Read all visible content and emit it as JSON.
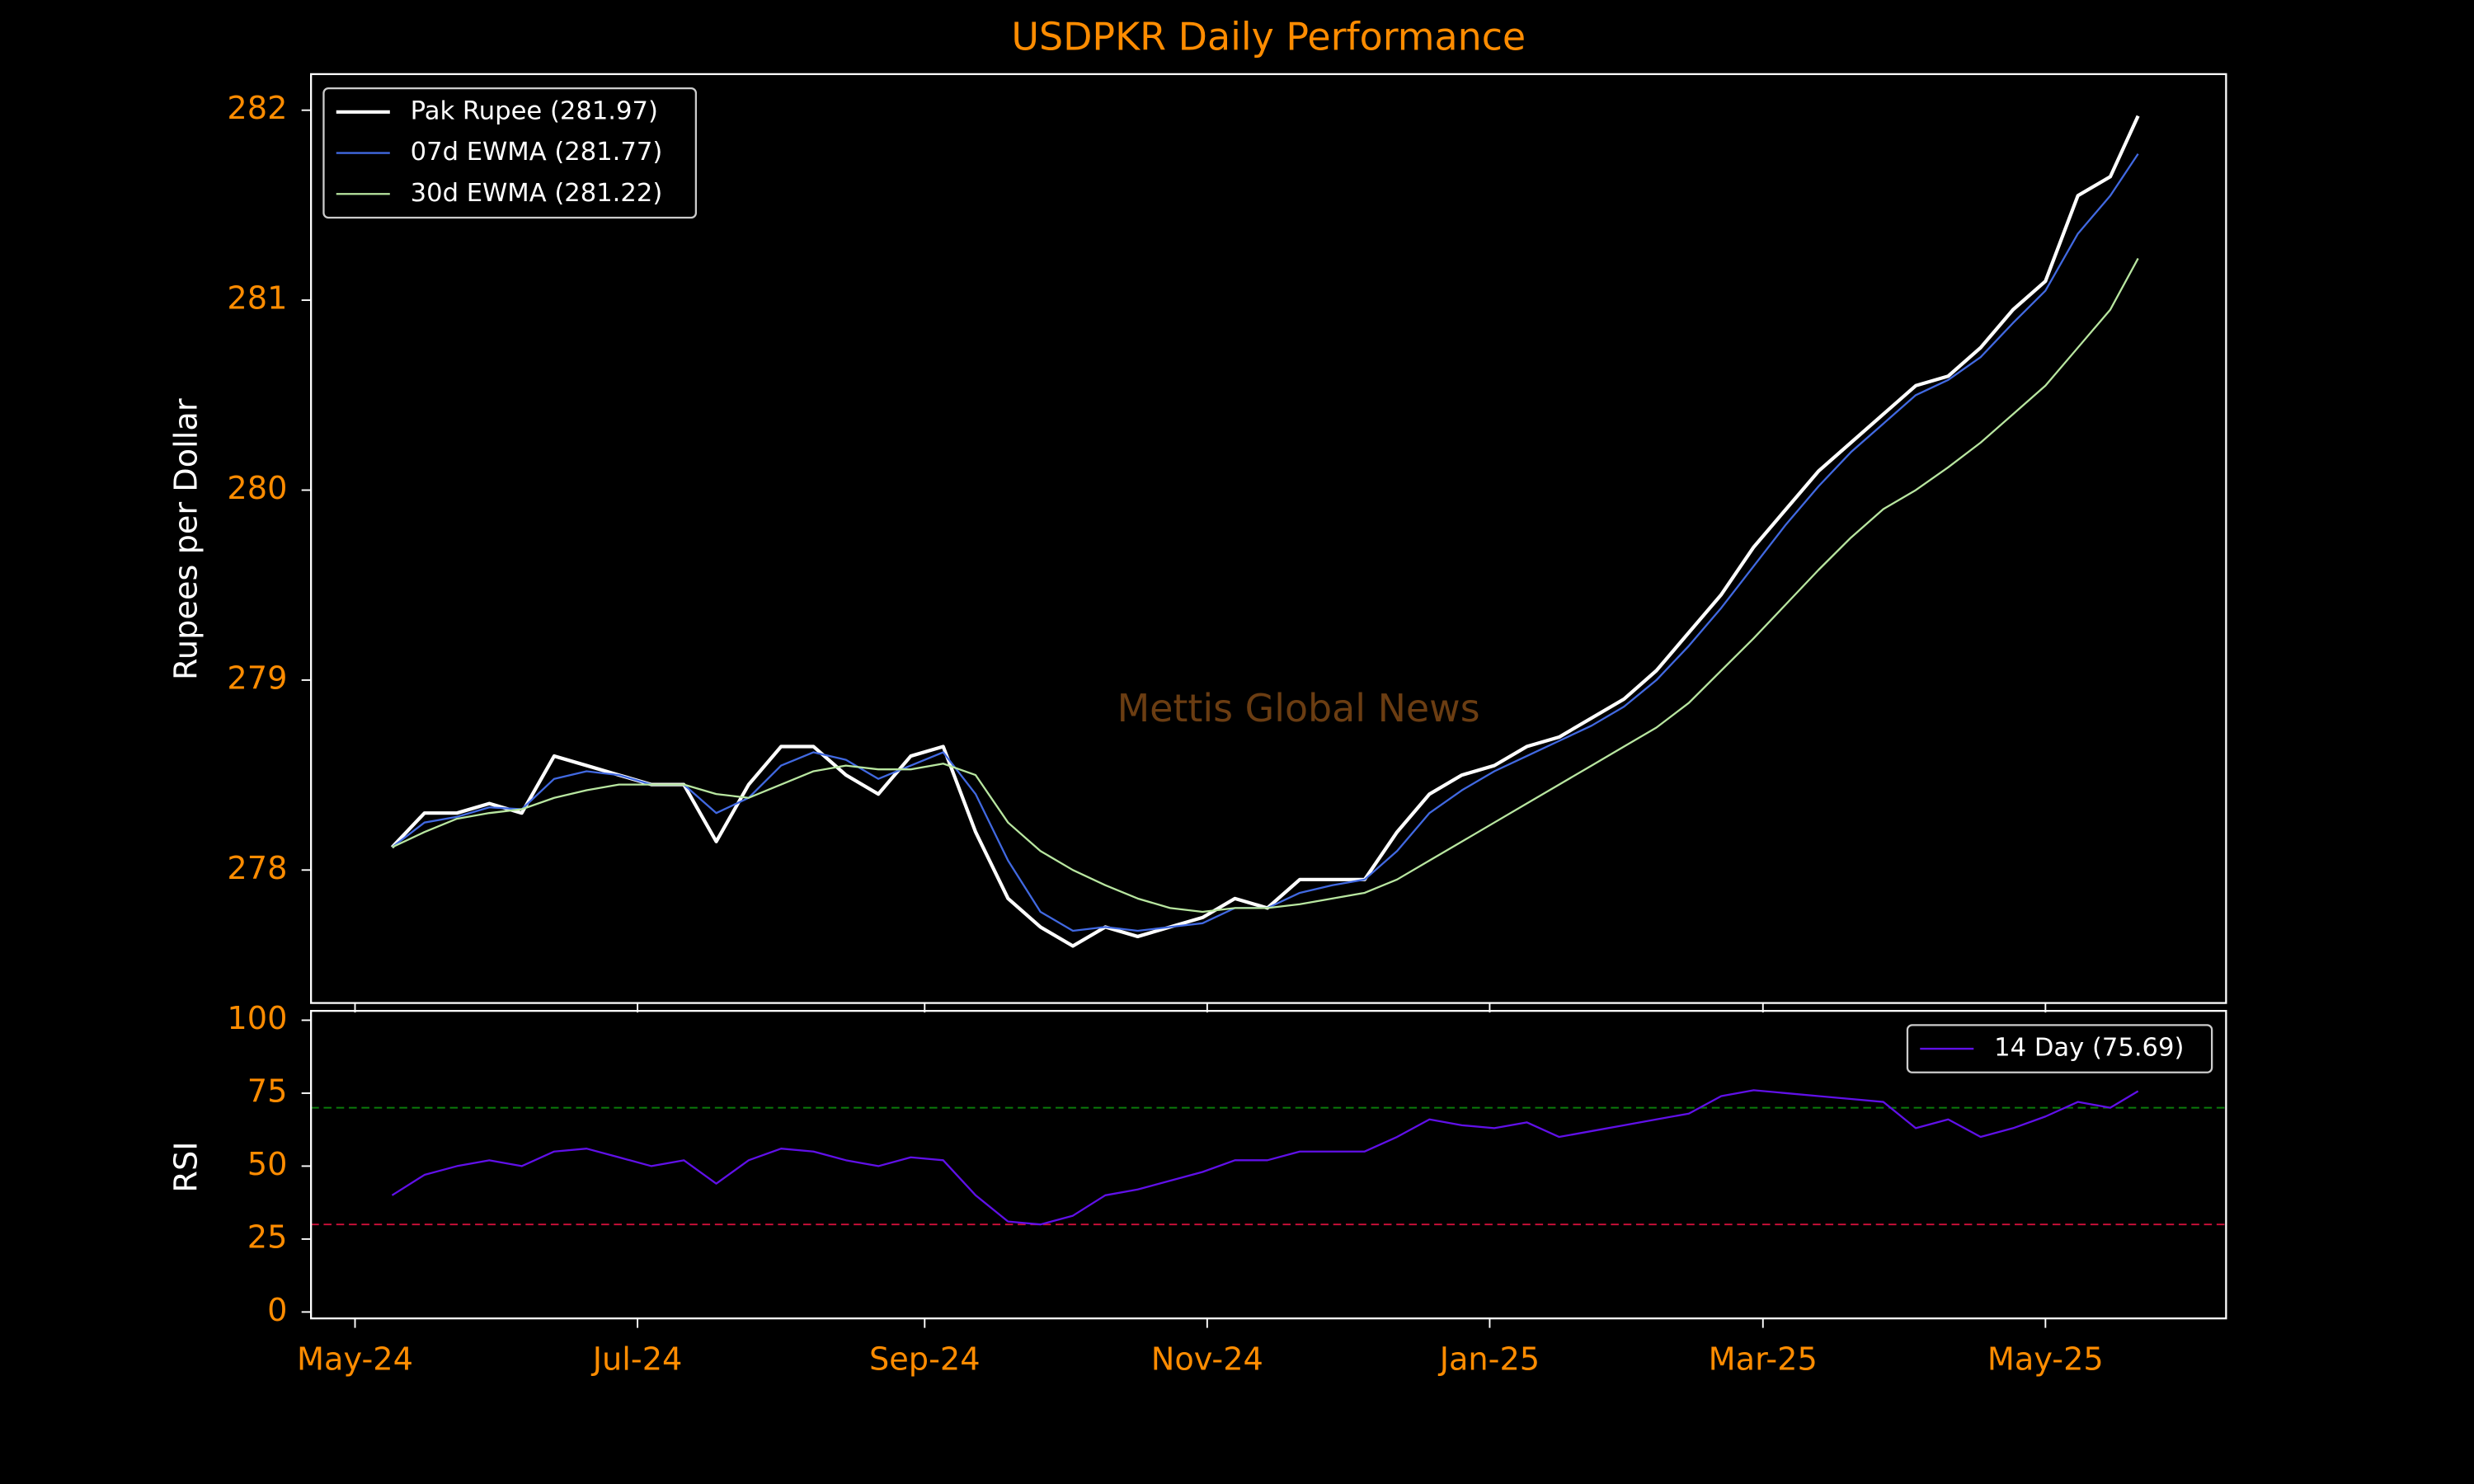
{
  "chart_data": [
    {
      "type": "line",
      "title": "USDPKR Daily Performance",
      "ylabel": "Rupees per Dollar",
      "watermark": "Mettis Global News",
      "legend": "upper left",
      "x": [
        8,
        15,
        22,
        29,
        36,
        43,
        50,
        57,
        64,
        71,
        78,
        85,
        92,
        99,
        106,
        113,
        120,
        127,
        134,
        141,
        148,
        155,
        162,
        169,
        176,
        183,
        190,
        197,
        204,
        211,
        218,
        225,
        232,
        239,
        246,
        253,
        260,
        267,
        274,
        281,
        288,
        295,
        302,
        309,
        316,
        323,
        330,
        337,
        344,
        351,
        358,
        365,
        372,
        379,
        385
      ],
      "series": [
        {
          "name": "Pak Rupee (281.97)",
          "color": "#ffffff",
          "width": 2.2,
          "values": [
            278.12,
            278.3,
            278.3,
            278.35,
            278.3,
            278.6,
            278.55,
            278.5,
            278.45,
            278.45,
            278.15,
            278.45,
            278.65,
            278.65,
            278.5,
            278.4,
            278.6,
            278.65,
            278.2,
            277.85,
            277.7,
            277.6,
            277.7,
            277.65,
            277.7,
            277.75,
            277.85,
            277.8,
            277.95,
            277.95,
            277.95,
            278.2,
            278.4,
            278.5,
            278.55,
            278.65,
            278.7,
            278.8,
            278.9,
            279.05,
            279.25,
            279.45,
            279.7,
            279.9,
            280.1,
            280.25,
            280.4,
            280.55,
            280.6,
            280.75,
            280.95,
            281.1,
            281.55,
            281.65,
            281.97
          ]
        },
        {
          "name": "07d EWMA (281.77)",
          "color": "#4169e1",
          "width": 1.2,
          "values": [
            278.12,
            278.25,
            278.28,
            278.33,
            278.32,
            278.48,
            278.52,
            278.5,
            278.45,
            278.45,
            278.3,
            278.38,
            278.55,
            278.62,
            278.58,
            278.48,
            278.55,
            278.62,
            278.4,
            278.05,
            277.78,
            277.68,
            277.7,
            277.68,
            277.7,
            277.72,
            277.8,
            277.8,
            277.88,
            277.92,
            277.95,
            278.1,
            278.3,
            278.42,
            278.52,
            278.6,
            278.68,
            278.76,
            278.86,
            279.0,
            279.18,
            279.38,
            279.6,
            279.82,
            280.02,
            280.2,
            280.35,
            280.5,
            280.58,
            280.7,
            280.88,
            281.05,
            281.35,
            281.55,
            281.77
          ]
        },
        {
          "name": "30d EWMA (281.22)",
          "color": "#b8e6a0",
          "width": 1.2,
          "values": [
            278.12,
            278.2,
            278.27,
            278.3,
            278.32,
            278.38,
            278.42,
            278.45,
            278.45,
            278.45,
            278.4,
            278.38,
            278.45,
            278.52,
            278.55,
            278.53,
            278.53,
            278.56,
            278.5,
            278.25,
            278.1,
            278.0,
            277.92,
            277.85,
            277.8,
            277.78,
            277.8,
            277.8,
            277.82,
            277.85,
            277.88,
            277.95,
            278.05,
            278.15,
            278.25,
            278.35,
            278.45,
            278.55,
            278.65,
            278.75,
            278.88,
            279.05,
            279.22,
            279.4,
            279.58,
            279.75,
            279.9,
            280.0,
            280.12,
            280.25,
            280.4,
            280.55,
            280.75,
            280.95,
            281.22
          ]
        }
      ],
      "xlim": [
        -9.5,
        404
      ],
      "ylim": [
        277.3,
        282.19
      ],
      "yticks": [
        278,
        279,
        280,
        281,
        282
      ]
    },
    {
      "type": "line",
      "ylabel": "RSI",
      "legend": "upper right",
      "x": [
        8,
        15,
        22,
        29,
        36,
        43,
        50,
        57,
        64,
        71,
        78,
        85,
        92,
        99,
        106,
        113,
        120,
        127,
        134,
        141,
        148,
        155,
        162,
        169,
        176,
        183,
        190,
        197,
        204,
        211,
        218,
        225,
        232,
        239,
        246,
        253,
        260,
        267,
        274,
        281,
        288,
        295,
        302,
        309,
        316,
        323,
        330,
        337,
        344,
        351,
        358,
        365,
        372,
        379,
        385
      ],
      "series": [
        {
          "name": "14 Day (75.69)",
          "color": "#6010e8",
          "width": 1.2,
          "values": [
            40,
            47,
            50,
            52,
            50,
            55,
            56,
            53,
            50,
            52,
            44,
            52,
            56,
            55,
            52,
            50,
            53,
            52,
            40,
            31,
            30,
            33,
            40,
            42,
            45,
            48,
            52,
            52,
            55,
            55,
            55,
            60,
            66,
            64,
            63,
            65,
            60,
            62,
            64,
            66,
            68,
            74,
            76,
            75,
            74,
            73,
            72,
            63,
            66,
            60,
            63,
            67,
            72,
            70,
            75.69
          ]
        }
      ],
      "hlines": [
        {
          "value": 70,
          "color": "#0a7a0a"
        },
        {
          "value": 30,
          "color": "#d0103a"
        }
      ],
      "xlim": [
        -9.5,
        404
      ],
      "ylim": [
        -2.2,
        103.2
      ],
      "yticks": [
        0,
        25,
        50,
        75,
        100
      ],
      "xticks": [
        {
          "value": 0,
          "label": "May-24"
        },
        {
          "value": 61,
          "label": "Jul-24"
        },
        {
          "value": 123,
          "label": "Sep-24"
        },
        {
          "value": 184,
          "label": "Nov-24"
        },
        {
          "value": 245,
          "label": "Jan-25"
        },
        {
          "value": 304,
          "label": "Mar-25"
        },
        {
          "value": 365,
          "label": "May-25"
        }
      ]
    }
  ]
}
